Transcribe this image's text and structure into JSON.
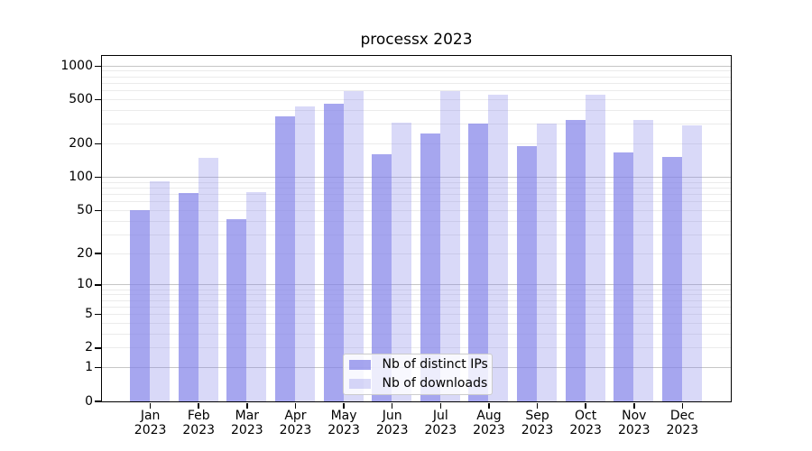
{
  "chart_data": {
    "type": "bar",
    "title": "processx 2023",
    "categories": [
      "Jan 2023",
      "Feb 2023",
      "Mar 2023",
      "Apr 2023",
      "May 2023",
      "Jun 2023",
      "Jul 2023",
      "Aug 2023",
      "Sep 2023",
      "Oct 2023",
      "Nov 2023",
      "Dec 2023"
    ],
    "series": [
      {
        "name": "Nb of distinct IPs",
        "color": "rgba(128,128,232,0.7)",
        "values": [
          50,
          71,
          41,
          351,
          455,
          161,
          246,
          304,
          188,
          325,
          165,
          152
        ]
      },
      {
        "name": "Nb of downloads",
        "color": "rgba(128,128,232,0.3)",
        "values": [
          92,
          149,
          73,
          432,
          590,
          310,
          596,
          554,
          301,
          545,
          326,
          289
        ]
      }
    ],
    "y_axis": {
      "scale": "log1p",
      "tick_labels": [
        "0",
        "1",
        "2",
        "5",
        "10",
        "20",
        "50",
        "100",
        "200",
        "500",
        "1000"
      ],
      "tick_values": [
        0,
        1,
        2,
        5,
        10,
        20,
        50,
        100,
        200,
        500,
        1000
      ],
      "ylim": [
        0,
        1233
      ],
      "major_gridlines": [
        1,
        10,
        100,
        1000
      ],
      "minor_gridlines": [
        2,
        3,
        4,
        5,
        6,
        7,
        8,
        9,
        20,
        30,
        40,
        50,
        60,
        70,
        80,
        90,
        200,
        300,
        400,
        500,
        600,
        700,
        800,
        900
      ]
    },
    "grid": "horizontal major+minor, drawn under translucent bars",
    "legend_position": "inside plot, lower center"
  },
  "legend": {
    "items": [
      {
        "label": "Nb of distinct IPs",
        "color": "rgba(128,128,232,0.7)"
      },
      {
        "label": "Nb of downloads",
        "color": "rgba(128,128,232,0.3)"
      }
    ]
  },
  "colors": {
    "bar_base": "#8080e8",
    "spine": "#000000",
    "major_grid": "#c6c6c6",
    "minor_grid": "#ebebeb",
    "background": "#ffffff"
  }
}
